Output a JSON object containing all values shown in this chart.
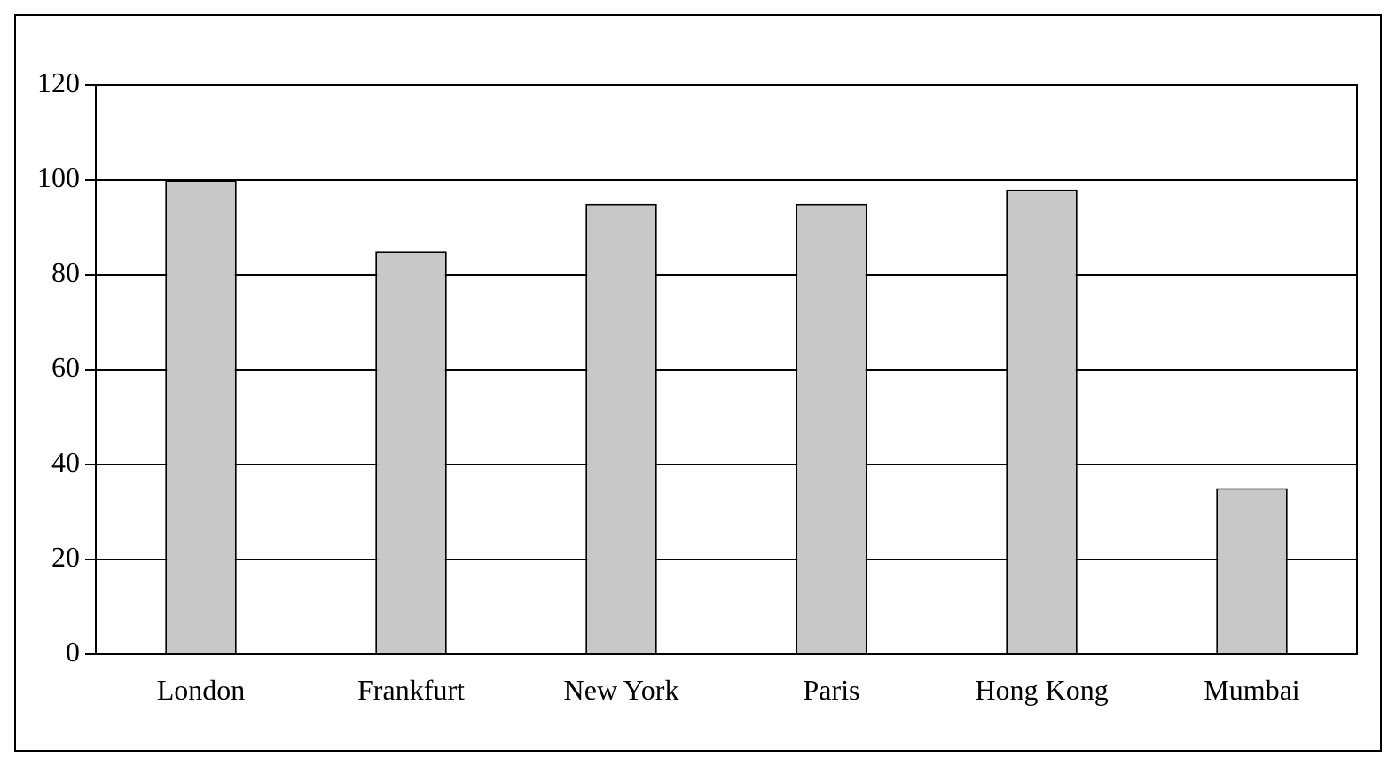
{
  "chart_data": {
    "type": "bar",
    "categories": [
      "London",
      "Frankfurt",
      "New York",
      "Paris",
      "Hong Kong",
      "Mumbai"
    ],
    "values": [
      100,
      85,
      95,
      95,
      98,
      35
    ],
    "color": "#c8c8c8",
    "ylim": [
      0,
      120
    ],
    "yticks": [
      0,
      20,
      40,
      60,
      80,
      100,
      120
    ],
    "grid": "y",
    "legend": false
  }
}
